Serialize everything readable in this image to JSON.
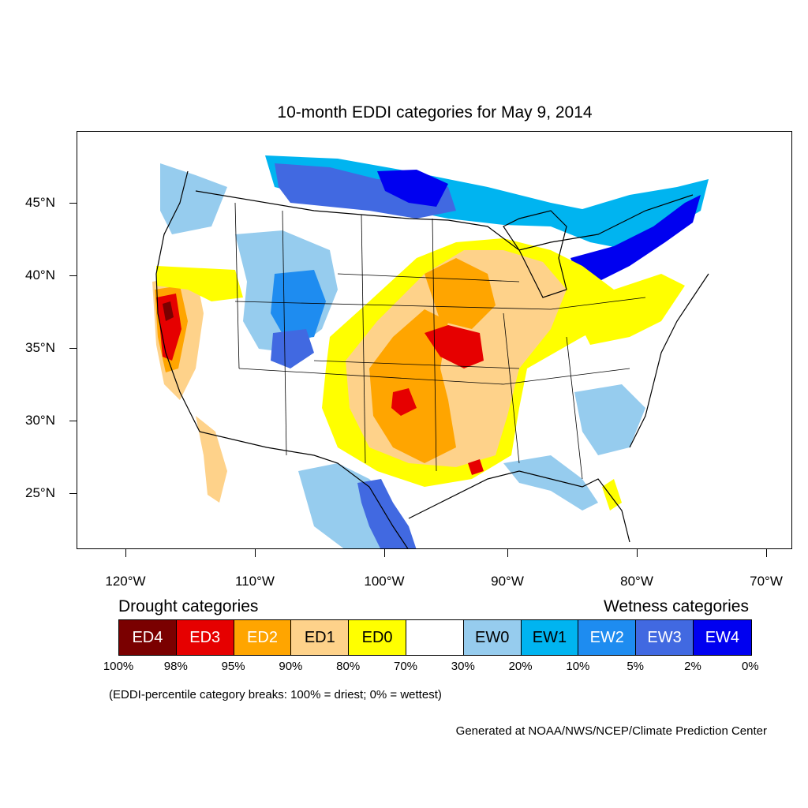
{
  "title": "10-month EDDI categories for May 9, 2014",
  "lat_labels": [
    "45°N",
    "40°N",
    "35°N",
    "30°N",
    "25°N"
  ],
  "lon_labels": [
    "120°W",
    "110°W",
    "100°W",
    "90°W",
    "80°W",
    "70°W"
  ],
  "drought_heading": "Drought categories",
  "wetness_heading": "Wetness categories",
  "categories": [
    {
      "label": "ED4",
      "color": "#7a0000",
      "text_color": "#ffffff"
    },
    {
      "label": "ED3",
      "color": "#e60000",
      "text_color": "#ffffff"
    },
    {
      "label": "ED2",
      "color": "#ffa500",
      "text_color": "#ffffff"
    },
    {
      "label": "ED1",
      "color": "#fed28a",
      "text_color": "#000000"
    },
    {
      "label": "ED0",
      "color": "#ffff00",
      "text_color": "#000000"
    },
    {
      "label": "",
      "color": "#ffffff",
      "text_color": "#000000"
    },
    {
      "label": "EW0",
      "color": "#96ccee",
      "text_color": "#000000"
    },
    {
      "label": "EW1",
      "color": "#00b4f0",
      "text_color": "#000000"
    },
    {
      "label": "EW2",
      "color": "#1e8cf0",
      "text_color": "#ffffff"
    },
    {
      "label": "EW3",
      "color": "#4169e1",
      "text_color": "#ffffff"
    },
    {
      "label": "EW4",
      "color": "#0000f0",
      "text_color": "#ffffff"
    }
  ],
  "percent_breaks": [
    "100%",
    "98%",
    "95%",
    "90%",
    "80%",
    "70%",
    "30%",
    "20%",
    "10%",
    "5%",
    "2%",
    "0%"
  ],
  "note": "(EDDI-percentile category breaks: 100% = driest; 0% = wettest)",
  "credit": "Generated at NOAA/NWS/NCEP/Climate Prediction Center"
}
